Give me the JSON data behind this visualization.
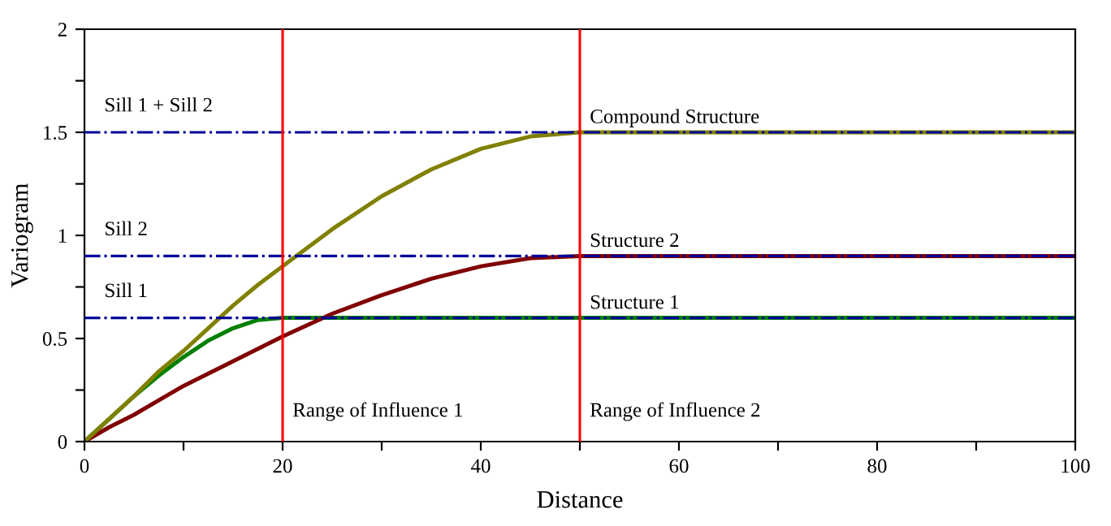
{
  "chart_data": {
    "type": "line",
    "xlabel": "Distance",
    "ylabel": "Variogram",
    "x": [
      0,
      2.5,
      5,
      7.5,
      10,
      12.5,
      15,
      17.5,
      20,
      25,
      30,
      35,
      40,
      45,
      50,
      60,
      70,
      80,
      90,
      100
    ],
    "series": [
      {
        "name": "Structure 1",
        "color": "#008000",
        "values": [
          0,
          0.11,
          0.22,
          0.32,
          0.41,
          0.49,
          0.55,
          0.59,
          0.6,
          0.6,
          0.6,
          0.6,
          0.6,
          0.6,
          0.6,
          0.6,
          0.6,
          0.6,
          0.6,
          0.6
        ]
      },
      {
        "name": "Structure 2",
        "color": "#800000",
        "values": [
          0,
          0.07,
          0.13,
          0.2,
          0.27,
          0.33,
          0.39,
          0.45,
          0.51,
          0.62,
          0.71,
          0.79,
          0.85,
          0.89,
          0.9,
          0.9,
          0.9,
          0.9,
          0.9,
          0.9
        ]
      },
      {
        "name": "Compound Structure",
        "color": "#808000",
        "values": [
          0,
          0.11,
          0.22,
          0.34,
          0.44,
          0.55,
          0.66,
          0.76,
          0.85,
          1.03,
          1.19,
          1.32,
          1.42,
          1.48,
          1.5,
          1.5,
          1.5,
          1.5,
          1.5,
          1.5
        ]
      }
    ],
    "xlim": [
      0,
      100
    ],
    "ylim": [
      0,
      2
    ],
    "xticks": [
      0,
      {
        "value": 10,
        "label": null
      },
      20,
      {
        "value": 30,
        "label": null
      },
      40,
      {
        "value": 50,
        "label": null
      },
      60,
      {
        "value": 70,
        "label": null
      },
      80,
      {
        "value": 90,
        "label": null
      },
      100
    ],
    "yticks": [
      0,
      {
        "value": 0.25,
        "label": null
      },
      0.5,
      {
        "value": 0.75,
        "label": null
      },
      1,
      {
        "value": 1.25,
        "label": null
      },
      1.5,
      {
        "value": 1.75,
        "label": null
      },
      2
    ],
    "ref_lines": [
      {
        "axis": "y",
        "value": 0.6,
        "label": "Sill 1",
        "color": "#000099",
        "line_style": "dashdot"
      },
      {
        "axis": "y",
        "value": 0.9,
        "label": "Sill 2",
        "color": "#000099",
        "line_style": "dashdot"
      },
      {
        "axis": "y",
        "value": 1.5,
        "label": "Sill 1 + Sill 2",
        "color": "#000099",
        "line_style": "dashdot"
      },
      {
        "axis": "x",
        "value": 20,
        "label": "Range of Influence 1",
        "color": "#ff0000",
        "line_style": "solid"
      },
      {
        "axis": "x",
        "value": 50,
        "label": "Range of Influence 2",
        "color": "#ff0000",
        "line_style": "solid"
      }
    ],
    "grid": false,
    "legend": false,
    "marker": "none",
    "line_style": "solid"
  }
}
